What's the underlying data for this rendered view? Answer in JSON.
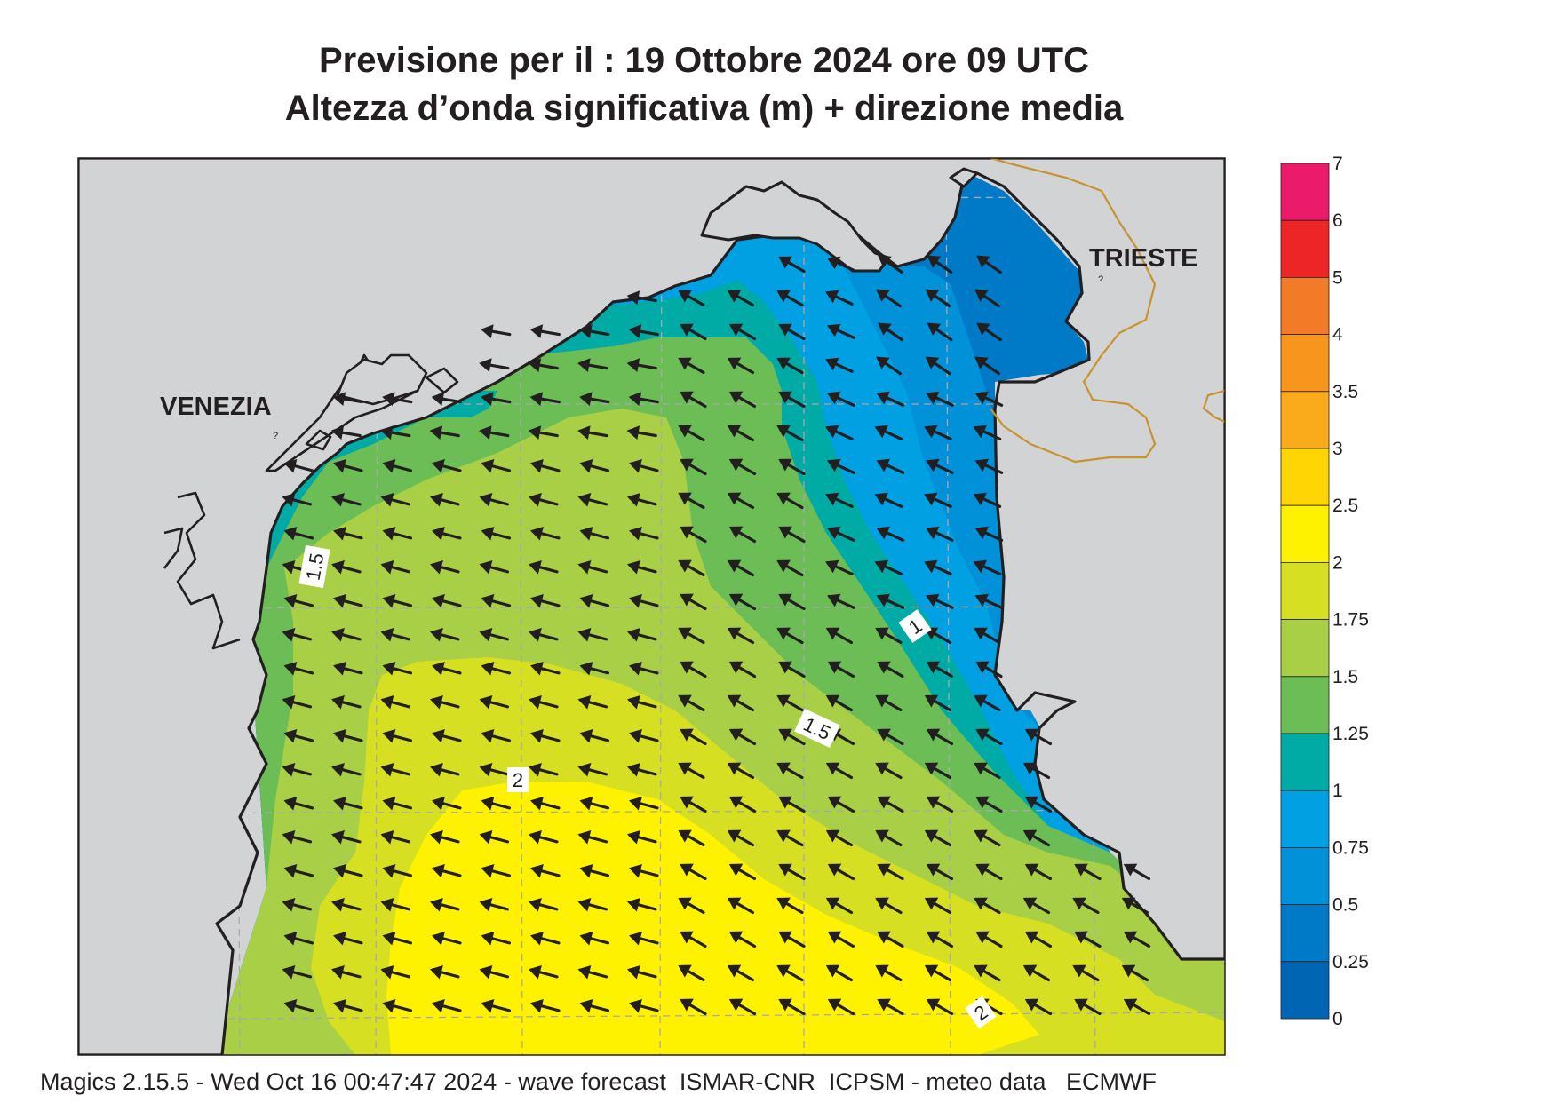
{
  "title": {
    "line1": "Previsione per il  :  19  Ottobre  2024   ore 09 UTC",
    "line2": "Altezza d’onda significativa (m) + direzione media"
  },
  "map": {
    "cities": [
      {
        "name": "VENEZIA"
      },
      {
        "name": "TRIESTE"
      }
    ],
    "contour_labels": [
      "1.5",
      "1",
      "1.5",
      "2",
      "2"
    ],
    "mean_wave_direction": "from south-east (arrows point north-west)",
    "colors": {
      "land": "#d1d3d4",
      "coastline": "#231f20",
      "border": "#c8922e",
      "gridline": "#a7a9ac"
    }
  },
  "legend": {
    "levels": [
      {
        "label": "7",
        "color": null
      },
      {
        "label": "6",
        "color": "#ec1a6a"
      },
      {
        "label": "5",
        "color": "#ee2526"
      },
      {
        "label": "4",
        "color": "#f37a26"
      },
      {
        "label": "3.5",
        "color": "#f8951d"
      },
      {
        "label": "3",
        "color": "#faab1c"
      },
      {
        "label": "2.5",
        "color": "#ffd503"
      },
      {
        "label": "2",
        "color": "#fff200"
      },
      {
        "label": "1.75",
        "color": "#d7df23"
      },
      {
        "label": "1.5",
        "color": "#a8cf45"
      },
      {
        "label": "1.25",
        "color": "#6cbd55"
      },
      {
        "label": "1",
        "color": "#00aaa5"
      },
      {
        "label": "0.75",
        "color": "#00a0e3"
      },
      {
        "label": "0.5",
        "color": "#0091d9"
      },
      {
        "label": "0.25",
        "color": "#007ac6"
      },
      {
        "label": "0",
        "color": "#0066b3"
      }
    ]
  },
  "footer": "Magics 2.15.5 - Wed Oct 16 00:47:47 2024 - wave forecast  ISMAR-CNR  ICPSM - meteo data   ECMWF"
}
